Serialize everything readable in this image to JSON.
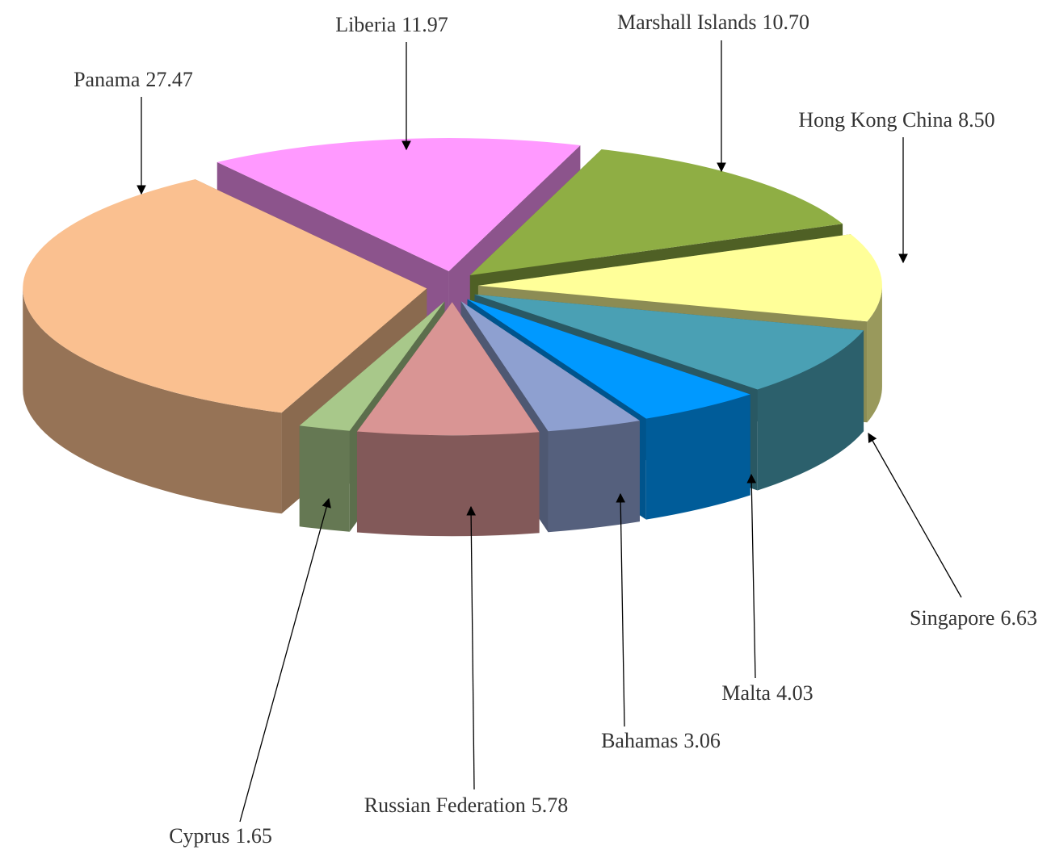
{
  "chart_data": {
    "type": "pie",
    "categories": [
      "Liberia",
      "Marshall Islands",
      "Hong Kong China",
      "Singapore",
      "Malta",
      "Bahamas",
      "Russian Federation",
      "Cyprus",
      "Panama"
    ],
    "values": [
      11.97,
      10.7,
      8.5,
      6.63,
      4.03,
      3.06,
      5.78,
      1.65,
      27.47
    ],
    "value_labels": [
      "11.97",
      "10.70",
      "8.50",
      "6.63",
      "4.03",
      "3.06",
      "5.78",
      "1.65",
      "27.47"
    ],
    "colors": [
      "#ff99ff",
      "#8fae44",
      "#ffff99",
      "#4aa0b4",
      "#0099ff",
      "#8ea0d0",
      "#d99594",
      "#a8c88a",
      "#fac090"
    ]
  }
}
